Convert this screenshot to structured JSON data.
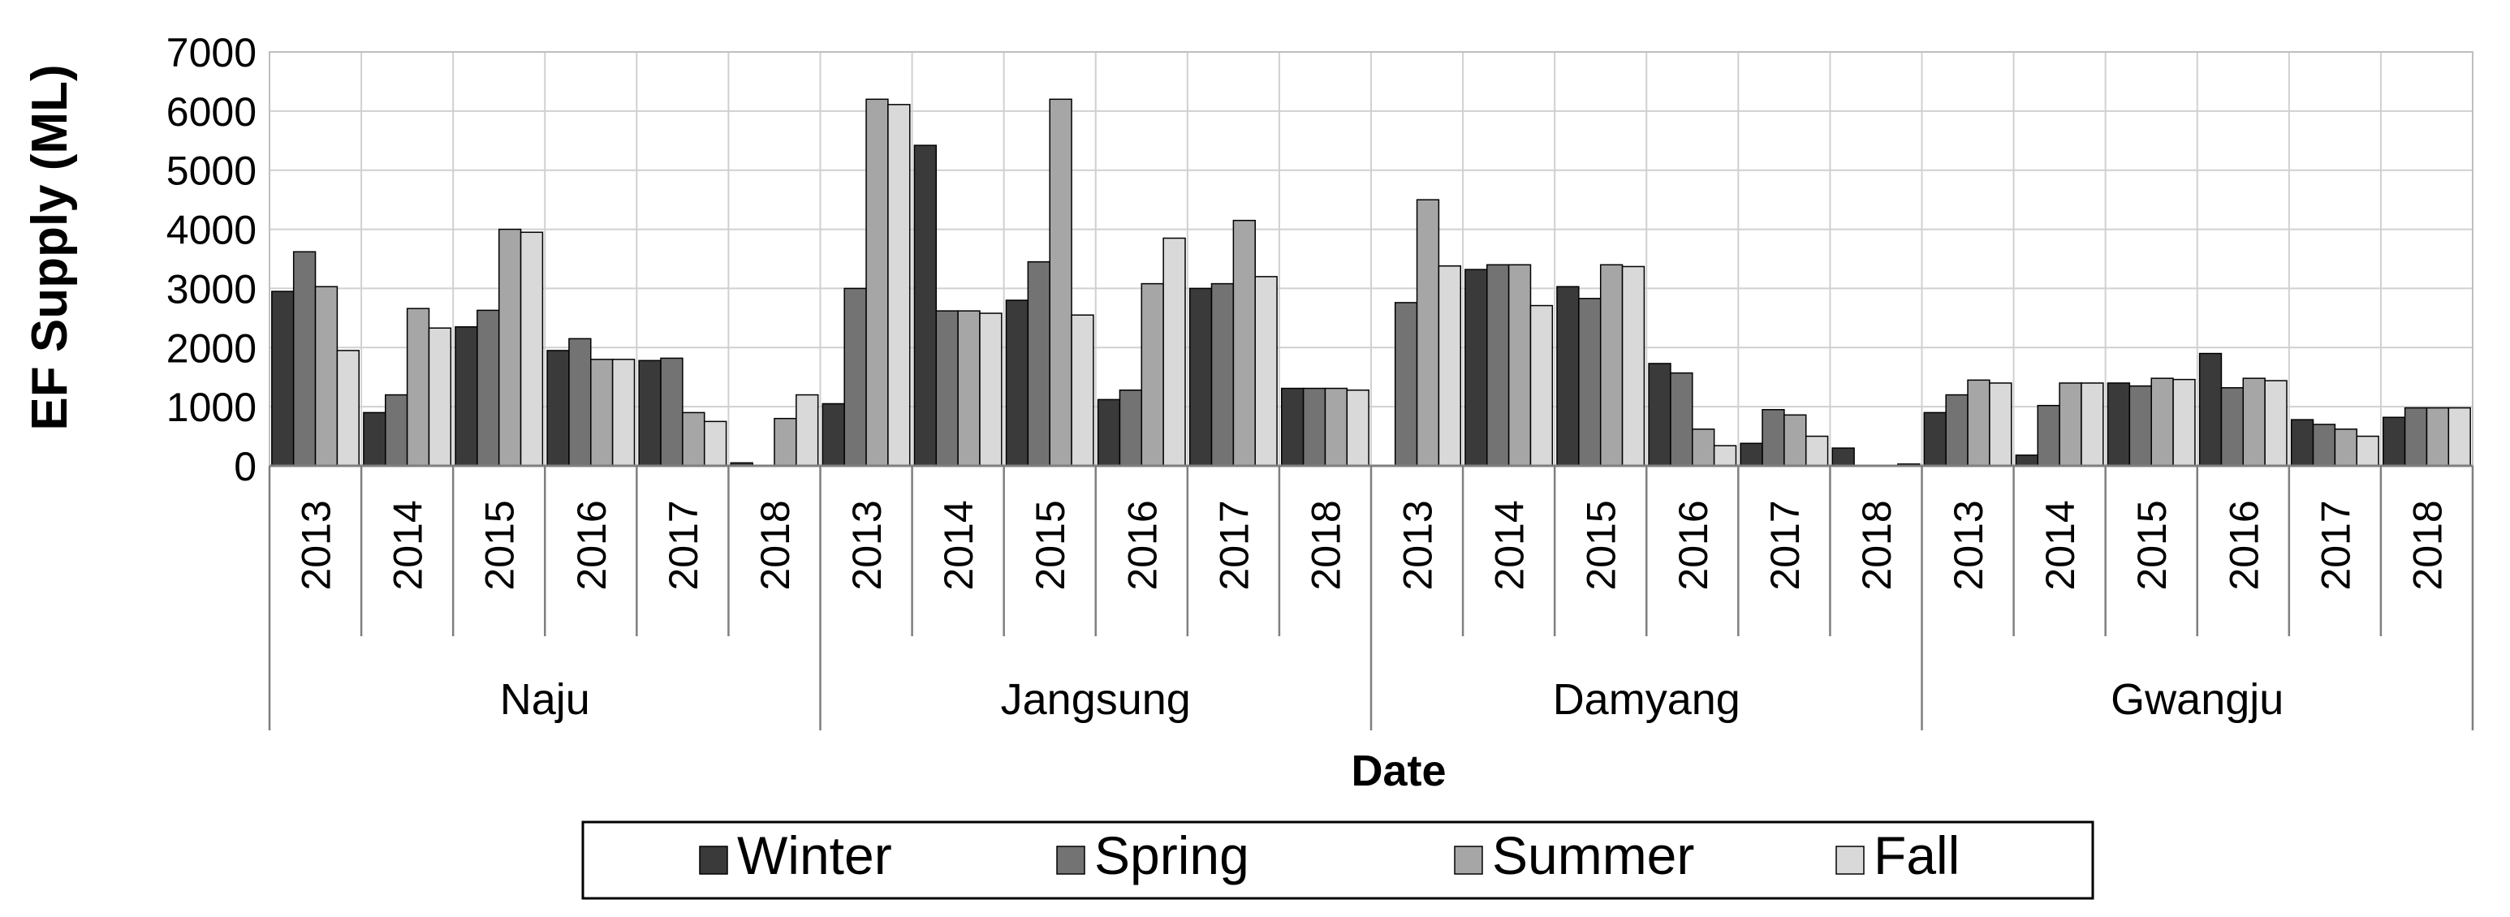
{
  "chart_data": {
    "type": "bar",
    "xlabel": "Date",
    "ylabel": "EF Supply (ML)",
    "ylim": [
      0,
      7000
    ],
    "yticks": [
      0,
      1000,
      2000,
      3000,
      4000,
      5000,
      6000,
      7000
    ],
    "grid": true,
    "legend_placement": "bottom",
    "groups": [
      {
        "name": "Naju",
        "categories": [
          "2013",
          "2014",
          "2015",
          "2016",
          "2017",
          "2018"
        ]
      },
      {
        "name": "Jangsung",
        "categories": [
          "2013",
          "2014",
          "2015",
          "2016",
          "2017",
          "2018"
        ]
      },
      {
        "name": "Damyang",
        "categories": [
          "2013",
          "2014",
          "2015",
          "2016",
          "2017",
          "2018"
        ]
      },
      {
        "name": "Gwangju",
        "categories": [
          "2013",
          "2014",
          "2015",
          "2016",
          "2017",
          "2018"
        ]
      }
    ],
    "series": [
      {
        "name": "Winter",
        "color": "#3a3a3a",
        "values": [
          2950,
          900,
          2350,
          1950,
          1780,
          50,
          1050,
          5420,
          2800,
          1120,
          3000,
          1310,
          0,
          3320,
          3030,
          1730,
          380,
          300,
          900,
          180,
          1400,
          1900,
          780,
          820
        ]
      },
      {
        "name": "Spring",
        "color": "#737373",
        "values": [
          3620,
          1200,
          2630,
          2150,
          1820,
          0,
          3000,
          2620,
          3450,
          1280,
          3080,
          1310,
          2760,
          3400,
          2830,
          1570,
          950,
          0,
          1200,
          1020,
          1350,
          1320,
          700,
          980
        ]
      },
      {
        "name": "Summer",
        "color": "#a6a6a6",
        "values": [
          3030,
          2660,
          4000,
          1800,
          900,
          800,
          6200,
          2620,
          6200,
          3080,
          4150,
          1310,
          4500,
          3400,
          3400,
          620,
          860,
          0,
          1450,
          1400,
          1480,
          1480,
          620,
          980
        ]
      },
      {
        "name": "Fall",
        "color": "#d9d9d9",
        "values": [
          1950,
          2330,
          3950,
          1800,
          750,
          1200,
          6110,
          2580,
          2550,
          3850,
          3200,
          1280,
          3380,
          2710,
          3370,
          340,
          500,
          30,
          1400,
          1400,
          1460,
          1440,
          500,
          980
        ]
      }
    ]
  }
}
